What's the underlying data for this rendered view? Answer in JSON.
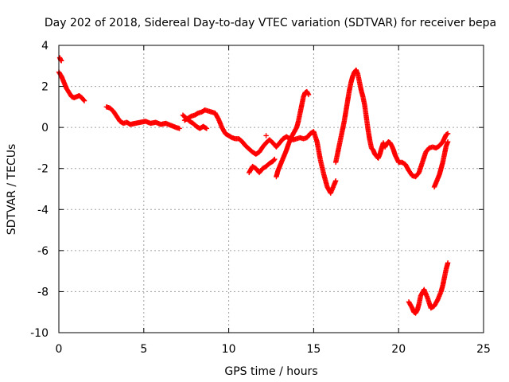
{
  "chart_data": {
    "type": "scatter",
    "title": "Day 202 of 2018, Sidereal Day-to-day VTEC variation (SDTVAR) for receiver bepa",
    "xlabel": "GPS time / hours",
    "ylabel": "SDTVAR / TECUs",
    "xlim": [
      0,
      25
    ],
    "ylim": [
      -10,
      4
    ],
    "xticks": [
      "0",
      "5",
      "10",
      "15",
      "20",
      "25"
    ],
    "yticks": [
      "4",
      "2",
      "0",
      "-2",
      "-4",
      "-6",
      "-8",
      "-10"
    ],
    "grid": true,
    "marker": "plus",
    "color": "#ff0000",
    "segments": [
      [
        [
          0.05,
          3.4
        ],
        [
          0.1,
          3.3
        ],
        [
          0.15,
          3.25
        ]
      ],
      [
        [
          0.0,
          2.7
        ],
        [
          0.15,
          2.5
        ],
        [
          0.3,
          2.2
        ],
        [
          0.45,
          1.9
        ],
        [
          0.6,
          1.7
        ],
        [
          0.75,
          1.5
        ],
        [
          0.9,
          1.45
        ],
        [
          1.05,
          1.5
        ],
        [
          1.2,
          1.55
        ],
        [
          1.35,
          1.45
        ],
        [
          1.5,
          1.3
        ]
      ],
      [
        [
          2.8,
          1.0
        ],
        [
          3.0,
          0.95
        ],
        [
          3.2,
          0.8
        ],
        [
          3.4,
          0.55
        ],
        [
          3.6,
          0.3
        ],
        [
          3.8,
          0.2
        ],
        [
          4.0,
          0.25
        ],
        [
          4.2,
          0.15
        ],
        [
          4.5,
          0.2
        ],
        [
          4.8,
          0.25
        ],
        [
          5.1,
          0.3
        ],
        [
          5.4,
          0.2
        ],
        [
          5.7,
          0.25
        ],
        [
          6.0,
          0.15
        ],
        [
          6.3,
          0.2
        ],
        [
          6.6,
          0.1
        ],
        [
          6.9,
          0.0
        ],
        [
          7.1,
          -0.05
        ]
      ],
      [
        [
          7.3,
          0.6
        ],
        [
          7.5,
          0.45
        ],
        [
          7.7,
          0.3
        ],
        [
          7.9,
          0.2
        ],
        [
          8.1,
          0.05
        ],
        [
          8.3,
          -0.05
        ],
        [
          8.5,
          0.05
        ],
        [
          8.7,
          -0.05
        ]
      ],
      [
        [
          7.4,
          0.35
        ],
        [
          7.6,
          0.45
        ],
        [
          7.8,
          0.55
        ],
        [
          8.0,
          0.6
        ],
        [
          8.2,
          0.7
        ],
        [
          8.4,
          0.75
        ],
        [
          8.6,
          0.85
        ],
        [
          8.8,
          0.8
        ],
        [
          9.0,
          0.75
        ],
        [
          9.2,
          0.7
        ],
        [
          9.4,
          0.4
        ],
        [
          9.6,
          0.0
        ],
        [
          9.8,
          -0.3
        ],
        [
          10.0,
          -0.4
        ],
        [
          10.2,
          -0.5
        ],
        [
          10.4,
          -0.55
        ],
        [
          10.6,
          -0.55
        ],
        [
          10.8,
          -0.7
        ],
        [
          11.0,
          -0.9
        ],
        [
          11.2,
          -1.05
        ],
        [
          11.4,
          -1.2
        ],
        [
          11.6,
          -1.3
        ],
        [
          11.8,
          -1.2
        ],
        [
          12.0,
          -0.95
        ],
        [
          12.2,
          -0.75
        ],
        [
          12.4,
          -0.6
        ],
        [
          12.6,
          -0.75
        ],
        [
          12.8,
          -0.95
        ],
        [
          13.0,
          -0.75
        ],
        [
          13.2,
          -0.55
        ],
        [
          13.4,
          -0.45
        ],
        [
          13.6,
          -0.55
        ],
        [
          13.8,
          -0.6
        ],
        [
          14.0,
          -0.55
        ],
        [
          14.2,
          -0.5
        ],
        [
          14.4,
          -0.55
        ],
        [
          14.6,
          -0.5
        ],
        [
          14.8,
          -0.3
        ],
        [
          15.0,
          -0.2
        ],
        [
          15.2,
          -0.7
        ],
        [
          15.4,
          -1.6
        ],
        [
          15.6,
          -2.3
        ],
        [
          15.8,
          -2.9
        ],
        [
          16.0,
          -3.2
        ],
        [
          16.2,
          -2.8
        ],
        [
          16.3,
          -2.6
        ]
      ],
      [
        [
          11.2,
          -2.2
        ],
        [
          11.4,
          -1.9
        ],
        [
          11.6,
          -2.0
        ],
        [
          11.8,
          -2.2
        ],
        [
          12.0,
          -2.0
        ],
        [
          12.2,
          -1.9
        ],
        [
          12.4,
          -1.75
        ],
        [
          12.6,
          -1.65
        ],
        [
          12.7,
          -1.55
        ]
      ],
      [
        [
          12.2,
          -0.4
        ]
      ],
      [
        [
          12.8,
          -2.4
        ],
        [
          12.9,
          -2.1
        ],
        [
          13.0,
          -1.9
        ],
        [
          13.1,
          -1.7
        ],
        [
          13.2,
          -1.5
        ],
        [
          13.3,
          -1.3
        ],
        [
          13.4,
          -1.1
        ],
        [
          13.5,
          -0.85
        ],
        [
          13.6,
          -0.65
        ],
        [
          13.7,
          -0.45
        ],
        [
          13.8,
          -0.3
        ],
        [
          13.9,
          -0.15
        ],
        [
          14.0,
          0.0
        ],
        [
          14.1,
          0.3
        ],
        [
          14.2,
          0.7
        ],
        [
          14.3,
          1.1
        ],
        [
          14.4,
          1.5
        ],
        [
          14.5,
          1.7
        ],
        [
          14.6,
          1.75
        ],
        [
          14.7,
          1.6
        ]
      ],
      [
        [
          16.3,
          -1.7
        ],
        [
          16.4,
          -1.3
        ],
        [
          16.5,
          -0.9
        ],
        [
          16.6,
          -0.5
        ],
        [
          16.7,
          -0.1
        ],
        [
          16.8,
          0.3
        ],
        [
          16.9,
          0.8
        ],
        [
          17.0,
          1.3
        ],
        [
          17.1,
          1.8
        ],
        [
          17.2,
          2.2
        ],
        [
          17.3,
          2.5
        ],
        [
          17.4,
          2.7
        ],
        [
          17.5,
          2.8
        ],
        [
          17.6,
          2.6
        ],
        [
          17.7,
          2.2
        ],
        [
          17.8,
          1.8
        ],
        [
          17.9,
          1.5
        ],
        [
          18.0,
          1.1
        ],
        [
          18.1,
          0.5
        ],
        [
          18.2,
          -0.1
        ],
        [
          18.3,
          -0.6
        ],
        [
          18.4,
          -1.0
        ],
        [
          18.5,
          -1.1
        ],
        [
          18.6,
          -1.3
        ],
        [
          18.8,
          -1.5
        ],
        [
          18.9,
          -1.3
        ],
        [
          19.0,
          -1.0
        ],
        [
          19.1,
          -0.75
        ],
        [
          19.2,
          -0.95
        ],
        [
          19.3,
          -0.8
        ],
        [
          19.4,
          -0.7
        ],
        [
          19.5,
          -0.75
        ],
        [
          19.6,
          -0.9
        ],
        [
          19.7,
          -1.1
        ],
        [
          19.8,
          -1.35
        ],
        [
          20.0,
          -1.7
        ],
        [
          20.2,
          -1.7
        ],
        [
          20.4,
          -1.8
        ],
        [
          20.6,
          -2.1
        ],
        [
          20.8,
          -2.35
        ],
        [
          21.0,
          -2.4
        ],
        [
          21.2,
          -2.2
        ],
        [
          21.4,
          -1.7
        ],
        [
          21.6,
          -1.2
        ],
        [
          21.8,
          -1.0
        ],
        [
          22.0,
          -0.95
        ],
        [
          22.2,
          -1.0
        ],
        [
          22.4,
          -0.9
        ],
        [
          22.6,
          -0.7
        ],
        [
          22.8,
          -0.35
        ],
        [
          22.9,
          -0.3
        ]
      ],
      [
        [
          22.1,
          -2.9
        ],
        [
          22.2,
          -2.7
        ],
        [
          22.3,
          -2.5
        ],
        [
          22.4,
          -2.3
        ],
        [
          22.5,
          -2.0
        ],
        [
          22.6,
          -1.7
        ],
        [
          22.7,
          -1.3
        ],
        [
          22.8,
          -0.9
        ],
        [
          22.9,
          -0.7
        ]
      ],
      [
        [
          20.6,
          -8.5
        ],
        [
          20.8,
          -8.8
        ],
        [
          20.9,
          -9.0
        ],
        [
          21.0,
          -9.05
        ],
        [
          21.1,
          -8.9
        ],
        [
          21.2,
          -8.6
        ],
        [
          21.3,
          -8.2
        ],
        [
          21.5,
          -7.9
        ],
        [
          21.7,
          -8.3
        ],
        [
          21.9,
          -8.8
        ],
        [
          22.1,
          -8.7
        ],
        [
          22.3,
          -8.4
        ],
        [
          22.5,
          -8.0
        ],
        [
          22.6,
          -7.7
        ],
        [
          22.7,
          -7.3
        ],
        [
          22.8,
          -6.9
        ],
        [
          22.9,
          -6.6
        ]
      ]
    ]
  }
}
